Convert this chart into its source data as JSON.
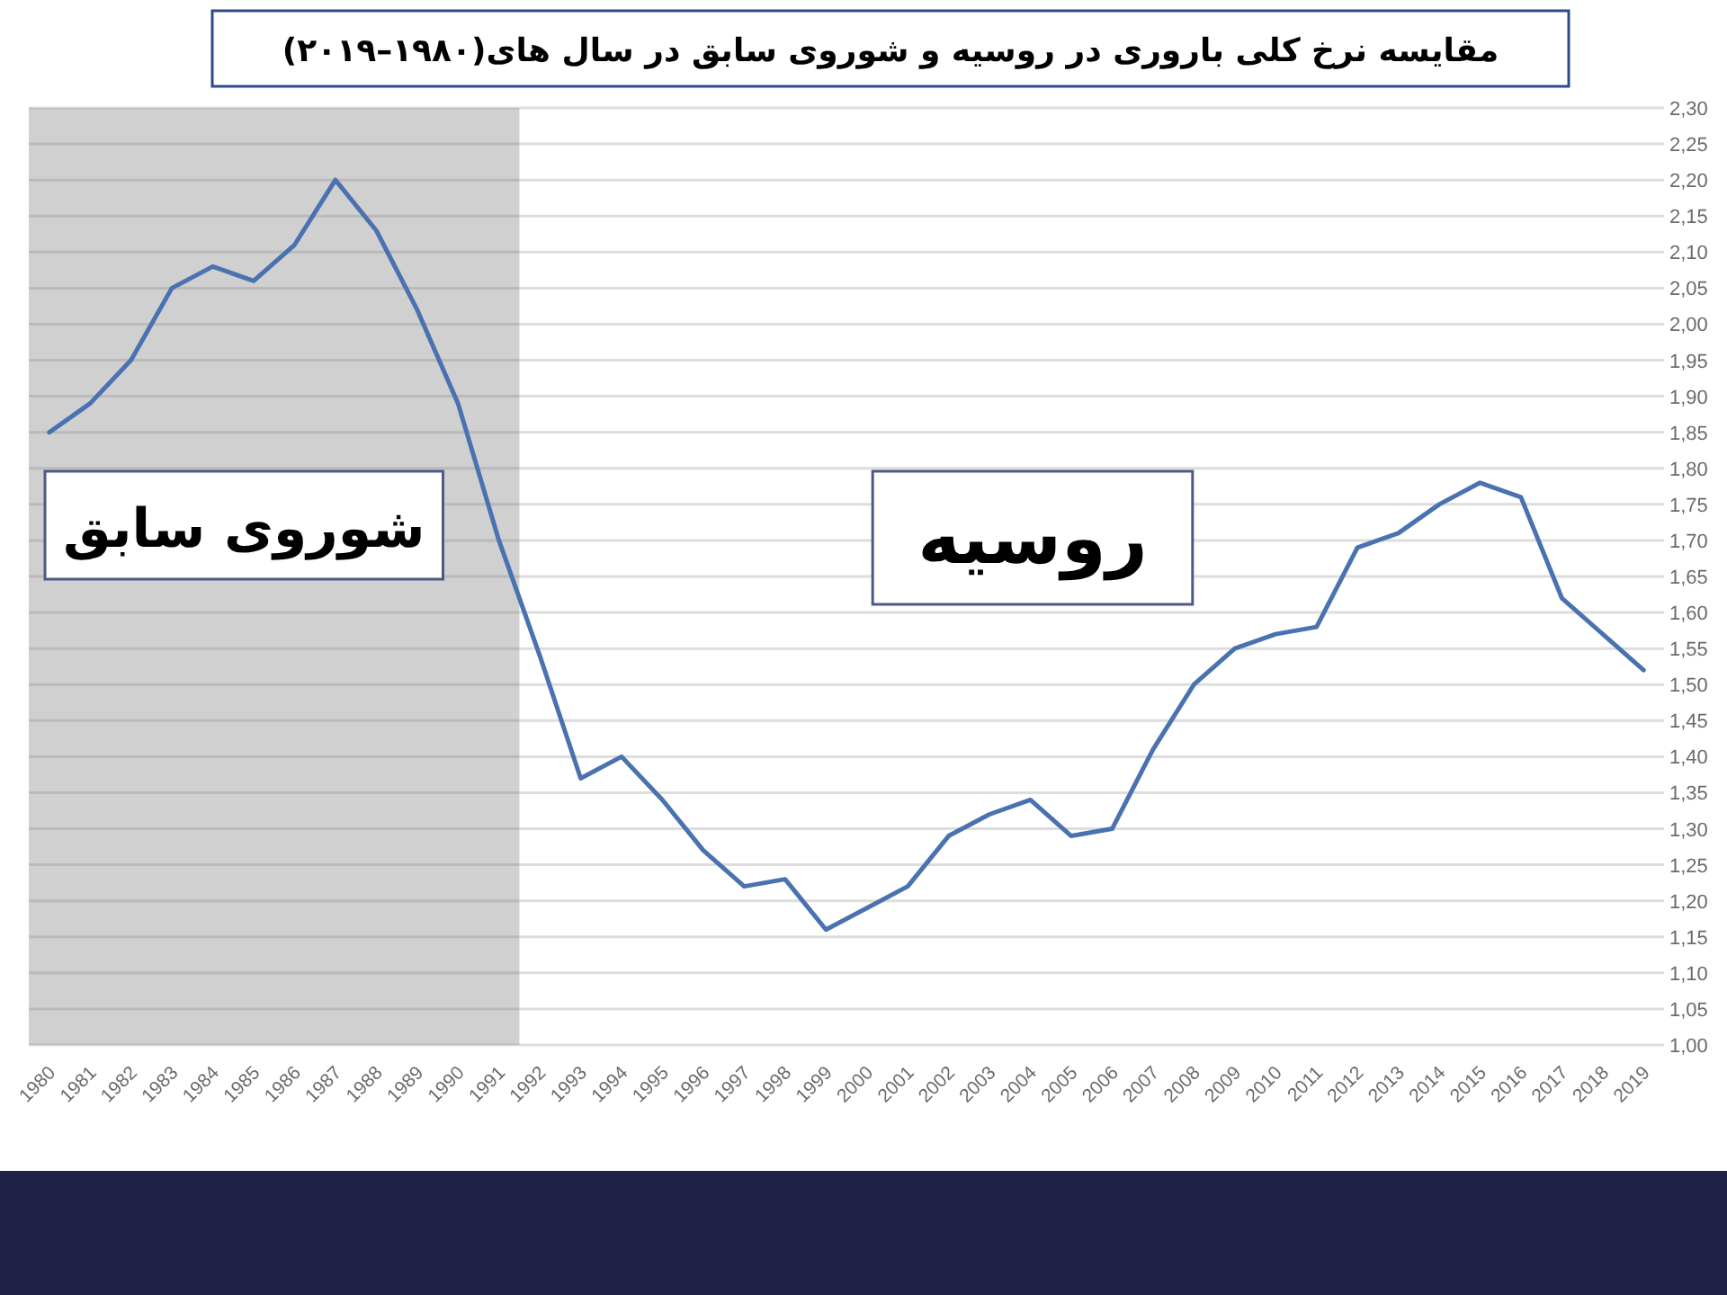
{
  "chart_data": {
    "type": "line",
    "title": "مقایسه نرخ کلی باروری در روسیه و شوروی سابق  در سال های(۱۹۸۰–۲۰۱۹)",
    "categories": [
      "1980",
      "1981",
      "1982",
      "1983",
      "1984",
      "1985",
      "1986",
      "1987",
      "1988",
      "1989",
      "1990",
      "1991",
      "1992",
      "1993",
      "1994",
      "1995",
      "1996",
      "1997",
      "1998",
      "1999",
      "2000",
      "2001",
      "2002",
      "2003",
      "2004",
      "2005",
      "2006",
      "2007",
      "2008",
      "2009",
      "2010",
      "2011",
      "2012",
      "2013",
      "2014",
      "2015",
      "2016",
      "2017",
      "2018",
      "2019"
    ],
    "series": [
      {
        "color": "#4a72b0",
        "values": [
          1.85,
          1.89,
          1.95,
          2.05,
          2.08,
          2.06,
          2.11,
          2.2,
          2.13,
          2.02,
          1.89,
          1.7,
          1.54,
          1.37,
          1.4,
          1.34,
          1.27,
          1.22,
          1.23,
          1.16,
          1.19,
          1.22,
          1.29,
          1.32,
          1.34,
          1.29,
          1.3,
          1.41,
          1.5,
          1.55,
          1.57,
          1.58,
          1.69,
          1.71,
          1.75,
          1.78,
          1.76,
          1.62,
          1.57,
          1.52
        ]
      }
    ],
    "ylim": [
      1,
      2.3
    ],
    "yticks": [
      {
        "value": 1,
        "label": "1,00"
      },
      {
        "value": 1.05,
        "label": "1,05"
      },
      {
        "value": 1.1,
        "label": "1,10"
      },
      {
        "value": 1.15,
        "label": "1,15"
      },
      {
        "value": 1.2,
        "label": "1,20"
      },
      {
        "value": 1.25,
        "label": "1,25"
      },
      {
        "value": 1.3,
        "label": "1,30"
      },
      {
        "value": 1.35,
        "label": "1,35"
      },
      {
        "value": 1.4,
        "label": "1,40"
      },
      {
        "value": 1.45,
        "label": "1,45"
      },
      {
        "value": 1.5,
        "label": "1,50"
      },
      {
        "value": 1.55,
        "label": "1,55"
      },
      {
        "value": 1.6,
        "label": "1,60"
      },
      {
        "value": 1.65,
        "label": "1,65"
      },
      {
        "value": 1.7,
        "label": "1,70"
      },
      {
        "value": 1.75,
        "label": "1,75"
      },
      {
        "value": 1.8,
        "label": "1,80"
      },
      {
        "value": 1.85,
        "label": "1,85"
      },
      {
        "value": 1.9,
        "label": "1,90"
      },
      {
        "value": 1.95,
        "label": "1,95"
      },
      {
        "value": 2,
        "label": "2,00"
      },
      {
        "value": 2.05,
        "label": "2,05"
      },
      {
        "value": 2.1,
        "label": "2,10"
      },
      {
        "value": 2.15,
        "label": "2,15"
      },
      {
        "value": 2.2,
        "label": "2,20"
      },
      {
        "value": 2.25,
        "label": "2,25"
      },
      {
        "value": 2.3,
        "label": "2,30"
      }
    ],
    "grid": "y",
    "marker": "none",
    "bands": [
      {
        "axis": "x",
        "from": "1980",
        "to": "1991",
        "label": "شوروی سابق",
        "color": "#d0d0d0"
      }
    ],
    "annotations": [
      "روسیه"
    ]
  }
}
